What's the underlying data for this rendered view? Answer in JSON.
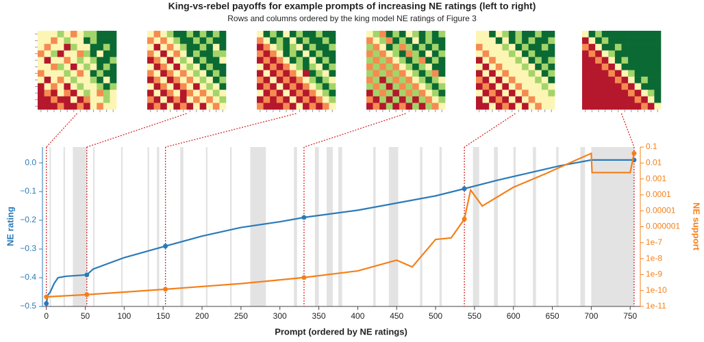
{
  "chart_data": {
    "type": "line",
    "title": "King-vs-rebel payoffs for example prompts of increasing NE ratings (left to right)",
    "subtitle": "Rows and columns ordered by the king model NE ratings of Figure 3",
    "xlabel": "Prompt (ordered by NE ratings)",
    "ylabel": "NE rating",
    "y2label": "NE support",
    "xlim": [
      -5,
      763
    ],
    "xticks": [
      0,
      50,
      100,
      150,
      200,
      250,
      300,
      350,
      400,
      450,
      500,
      550,
      600,
      650,
      700,
      750
    ],
    "ylim": [
      -0.5,
      0.055
    ],
    "yticks": [
      {
        "value": -0.5,
        "label": "−0.5"
      },
      {
        "value": -0.4,
        "label": "−0.4"
      },
      {
        "value": -0.3,
        "label": "−0.3"
      },
      {
        "value": -0.2,
        "label": "−0.2"
      },
      {
        "value": -0.1,
        "label": "−0.1"
      },
      {
        "value": 0,
        "label": "0.0"
      }
    ],
    "y2log": true,
    "y2lim": [
      1e-11,
      0.1
    ],
    "y2ticks": [
      0.1,
      0.01,
      0.001,
      0.0001,
      1e-05,
      1e-06,
      {
        "value": 1e-07,
        "label": "1e-7"
      },
      {
        "value": 1e-08,
        "label": "1e-8"
      },
      {
        "value": 1e-09,
        "label": "1e-9"
      },
      {
        "value": 1e-10,
        "label": "1e-10"
      },
      {
        "value": 1e-11,
        "label": "1e-11"
      }
    ],
    "series": [
      {
        "name": "NE rating",
        "color": "#2a7ab9",
        "x": [
          0,
          2,
          5,
          10,
          15,
          25,
          52,
          60,
          80,
          100,
          120,
          153,
          200,
          250,
          300,
          331,
          400,
          450,
          500,
          537,
          580,
          620,
          660,
          690,
          700,
          755
        ],
        "values": [
          -0.49,
          -0.46,
          -0.45,
          -0.42,
          -0.4,
          -0.395,
          -0.39,
          -0.37,
          -0.35,
          -0.33,
          -0.315,
          -0.29,
          -0.255,
          -0.225,
          -0.205,
          -0.19,
          -0.165,
          -0.14,
          -0.115,
          -0.09,
          -0.06,
          -0.035,
          -0.01,
          0.005,
          0.01,
          0.01
        ]
      },
      {
        "name": "NE support",
        "color": "#f57f17",
        "axis": "y2",
        "x": [
          0,
          52,
          153,
          250,
          331,
          400,
          450,
          470,
          500,
          520,
          537,
          545,
          560,
          600,
          640,
          680,
          700,
          701,
          750,
          755
        ],
        "values": [
          4e-11,
          5.5e-11,
          1.2e-10,
          2.7e-10,
          6.5e-10,
          1.7e-09,
          8e-09,
          3e-09,
          1.6e-07,
          2e-07,
          3e-06,
          0.0002,
          2e-05,
          0.0003,
          0.002,
          0.015,
          0.04,
          0.0025,
          0.0025,
          0.04
        ]
      }
    ],
    "highlight_x": [
      0,
      52,
      153,
      331,
      537,
      755
    ],
    "shaded_regions": [
      [
        4,
        6
      ],
      [
        22,
        24
      ],
      [
        34,
        52
      ],
      [
        60,
        62
      ],
      [
        96,
        98
      ],
      [
        130,
        132
      ],
      [
        142,
        145
      ],
      [
        172,
        176
      ],
      [
        205,
        207
      ],
      [
        236,
        238
      ],
      [
        262,
        282
      ],
      [
        318,
        322
      ],
      [
        345,
        350
      ],
      [
        360,
        368
      ],
      [
        375,
        380
      ],
      [
        420,
        423
      ],
      [
        440,
        452
      ],
      [
        480,
        483
      ],
      [
        505,
        508
      ],
      [
        548,
        556
      ],
      [
        575,
        580
      ],
      [
        600,
        603
      ],
      [
        625,
        629
      ],
      [
        655,
        658
      ],
      [
        686,
        692
      ],
      [
        700,
        755
      ]
    ],
    "heatmap_colors": [
      "#b5172c",
      "#f58b51",
      "#fdf5b3",
      "#a3d46a",
      "#0b6a33"
    ],
    "heatmaps": [
      [
        [
          2,
          2,
          2,
          3,
          2,
          1,
          2,
          3,
          3,
          4,
          4,
          4
        ],
        [
          2,
          2,
          1,
          2,
          3,
          2,
          2,
          4,
          3,
          4,
          4,
          4
        ],
        [
          2,
          1,
          2,
          2,
          0,
          3,
          2,
          2,
          4,
          4,
          3,
          4
        ],
        [
          1,
          2,
          3,
          0,
          2,
          2,
          1,
          3,
          4,
          2,
          4,
          4
        ],
        [
          2,
          0,
          2,
          2,
          1,
          2,
          3,
          2,
          3,
          4,
          4,
          3
        ],
        [
          2,
          2,
          1,
          3,
          2,
          0,
          2,
          3,
          2,
          4,
          3,
          4
        ],
        [
          1,
          2,
          2,
          2,
          3,
          2,
          1,
          2,
          4,
          3,
          4,
          4
        ],
        [
          2,
          0,
          2,
          1,
          2,
          3,
          2,
          2,
          3,
          4,
          2,
          4
        ],
        [
          0,
          2,
          1,
          2,
          0,
          2,
          3,
          2,
          2,
          3,
          4,
          3
        ],
        [
          0,
          1,
          0,
          2,
          1,
          0,
          2,
          3,
          2,
          1,
          3,
          2
        ],
        [
          0,
          0,
          1,
          0,
          0,
          2,
          0,
          1,
          2,
          2,
          3,
          2
        ],
        [
          0,
          0,
          0,
          1,
          0,
          0,
          1,
          0,
          2,
          1,
          2,
          2
        ]
      ],
      [
        [
          2,
          1,
          2,
          3,
          4,
          4,
          3,
          4,
          3,
          4,
          3,
          4
        ],
        [
          1,
          2,
          1,
          2,
          3,
          4,
          4,
          3,
          4,
          3,
          4,
          4
        ],
        [
          2,
          0,
          2,
          1,
          2,
          3,
          4,
          4,
          3,
          4,
          2,
          4
        ],
        [
          1,
          2,
          0,
          2,
          1,
          2,
          4,
          3,
          4,
          4,
          3,
          3
        ],
        [
          0,
          1,
          2,
          0,
          2,
          3,
          2,
          4,
          3,
          4,
          4,
          2
        ],
        [
          2,
          0,
          1,
          2,
          0,
          2,
          3,
          2,
          4,
          3,
          4,
          4
        ],
        [
          1,
          2,
          0,
          1,
          2,
          1,
          2,
          3,
          2,
          4,
          3,
          4
        ],
        [
          0,
          1,
          2,
          0,
          1,
          2,
          1,
          2,
          3,
          2,
          4,
          3
        ],
        [
          2,
          0,
          1,
          2,
          0,
          1,
          2,
          0,
          2,
          3,
          2,
          4
        ],
        [
          0,
          2,
          0,
          1,
          2,
          0,
          1,
          2,
          1,
          2,
          3,
          2
        ],
        [
          1,
          0,
          2,
          0,
          1,
          0,
          2,
          1,
          2,
          1,
          2,
          3
        ],
        [
          0,
          1,
          0,
          2,
          0,
          1,
          0,
          2,
          0,
          2,
          1,
          2
        ]
      ],
      [
        [
          2,
          4,
          3,
          4,
          2,
          4,
          3,
          4,
          4,
          3,
          4,
          4
        ],
        [
          1,
          2,
          4,
          3,
          4,
          2,
          4,
          3,
          4,
          4,
          3,
          4
        ],
        [
          0,
          1,
          2,
          3,
          4,
          3,
          2,
          4,
          3,
          4,
          4,
          3
        ],
        [
          1,
          0,
          1,
          2,
          4,
          3,
          4,
          2,
          4,
          3,
          4,
          4
        ],
        [
          0,
          1,
          0,
          1,
          2,
          4,
          3,
          4,
          2,
          4,
          3,
          4
        ],
        [
          2,
          0,
          1,
          0,
          1,
          2,
          3,
          4,
          3,
          2,
          4,
          3
        ],
        [
          0,
          2,
          0,
          1,
          0,
          1,
          2,
          0,
          4,
          3,
          2,
          4
        ],
        [
          1,
          0,
          2,
          0,
          1,
          0,
          1,
          2,
          3,
          4,
          3,
          2
        ],
        [
          0,
          1,
          0,
          2,
          0,
          1,
          0,
          1,
          2,
          3,
          4,
          3
        ],
        [
          2,
          0,
          1,
          0,
          2,
          0,
          1,
          0,
          1,
          2,
          3,
          4
        ],
        [
          0,
          1,
          0,
          1,
          0,
          2,
          0,
          1,
          0,
          1,
          2,
          3
        ],
        [
          1,
          0,
          0,
          0,
          1,
          0,
          2,
          0,
          1,
          0,
          1,
          2
        ]
      ],
      [
        [
          2,
          3,
          1,
          4,
          3,
          4,
          2,
          3,
          4,
          3,
          4,
          3
        ],
        [
          1,
          2,
          3,
          1,
          4,
          3,
          4,
          2,
          4,
          3,
          4,
          4
        ],
        [
          3,
          1,
          2,
          4,
          3,
          1,
          3,
          4,
          3,
          4,
          3,
          4
        ],
        [
          1,
          3,
          1,
          2,
          3,
          4,
          1,
          3,
          4,
          2,
          4,
          3
        ],
        [
          3,
          1,
          3,
          1,
          2,
          3,
          4,
          3,
          1,
          4,
          3,
          4
        ],
        [
          1,
          3,
          1,
          3,
          1,
          2,
          3,
          4,
          3,
          2,
          4,
          4
        ],
        [
          3,
          1,
          3,
          1,
          3,
          1,
          2,
          3,
          4,
          3,
          1,
          4
        ],
        [
          1,
          3,
          0,
          3,
          1,
          3,
          1,
          2,
          3,
          4,
          3,
          2
        ],
        [
          3,
          1,
          3,
          0,
          3,
          1,
          3,
          1,
          2,
          3,
          4,
          3
        ],
        [
          0,
          3,
          1,
          3,
          0,
          3,
          1,
          3,
          1,
          2,
          3,
          4
        ],
        [
          1,
          0,
          3,
          0,
          3,
          0,
          3,
          0,
          3,
          1,
          2,
          3
        ],
        [
          0,
          1,
          0,
          3,
          0,
          1,
          0,
          3,
          0,
          3,
          1,
          2
        ]
      ],
      [
        [
          2,
          2,
          4,
          2,
          3,
          4,
          3,
          4,
          4,
          3,
          4,
          4
        ],
        [
          2,
          2,
          2,
          4,
          2,
          4,
          3,
          4,
          3,
          4,
          4,
          3
        ],
        [
          1,
          2,
          2,
          2,
          3,
          2,
          4,
          3,
          4,
          4,
          3,
          4
        ],
        [
          2,
          1,
          2,
          2,
          2,
          3,
          2,
          4,
          3,
          4,
          4,
          4
        ],
        [
          0,
          2,
          1,
          2,
          2,
          2,
          3,
          2,
          4,
          3,
          4,
          3
        ],
        [
          2,
          0,
          2,
          1,
          2,
          2,
          2,
          3,
          2,
          4,
          3,
          4
        ],
        [
          0,
          2,
          0,
          2,
          1,
          2,
          2,
          2,
          3,
          2,
          4,
          3
        ],
        [
          1,
          0,
          2,
          0,
          2,
          1,
          2,
          2,
          2,
          3,
          2,
          4
        ],
        [
          0,
          1,
          0,
          2,
          0,
          2,
          1,
          2,
          2,
          2,
          3,
          2
        ],
        [
          2,
          0,
          1,
          0,
          2,
          0,
          2,
          1,
          2,
          2,
          2,
          3
        ],
        [
          0,
          2,
          0,
          1,
          0,
          2,
          0,
          2,
          1,
          2,
          2,
          2
        ],
        [
          0,
          0,
          2,
          0,
          1,
          0,
          2,
          0,
          2,
          1,
          2,
          2
        ]
      ],
      [
        [
          2,
          4,
          3,
          4,
          4,
          4,
          4,
          4,
          4,
          4,
          4,
          4
        ],
        [
          0,
          2,
          4,
          3,
          4,
          4,
          4,
          4,
          4,
          4,
          4,
          4
        ],
        [
          1,
          0,
          2,
          4,
          4,
          3,
          4,
          4,
          4,
          4,
          4,
          4
        ],
        [
          0,
          1,
          0,
          2,
          3,
          4,
          4,
          4,
          4,
          4,
          4,
          4
        ],
        [
          0,
          0,
          1,
          0,
          2,
          4,
          3,
          4,
          4,
          4,
          4,
          4
        ],
        [
          0,
          0,
          0,
          1,
          0,
          2,
          4,
          4,
          4,
          4,
          4,
          4
        ],
        [
          0,
          0,
          0,
          0,
          1,
          0,
          2,
          3,
          4,
          4,
          4,
          4
        ],
        [
          0,
          0,
          0,
          0,
          0,
          1,
          0,
          2,
          4,
          3,
          4,
          4
        ],
        [
          0,
          0,
          0,
          0,
          0,
          0,
          1,
          0,
          2,
          4,
          4,
          4
        ],
        [
          0,
          0,
          0,
          0,
          0,
          0,
          0,
          1,
          0,
          2,
          3,
          4
        ],
        [
          0,
          0,
          0,
          0,
          0,
          0,
          0,
          0,
          1,
          0,
          2,
          4
        ],
        [
          0,
          0,
          0,
          0,
          0,
          0,
          0,
          0,
          0,
          1,
          0,
          2
        ]
      ]
    ]
  }
}
